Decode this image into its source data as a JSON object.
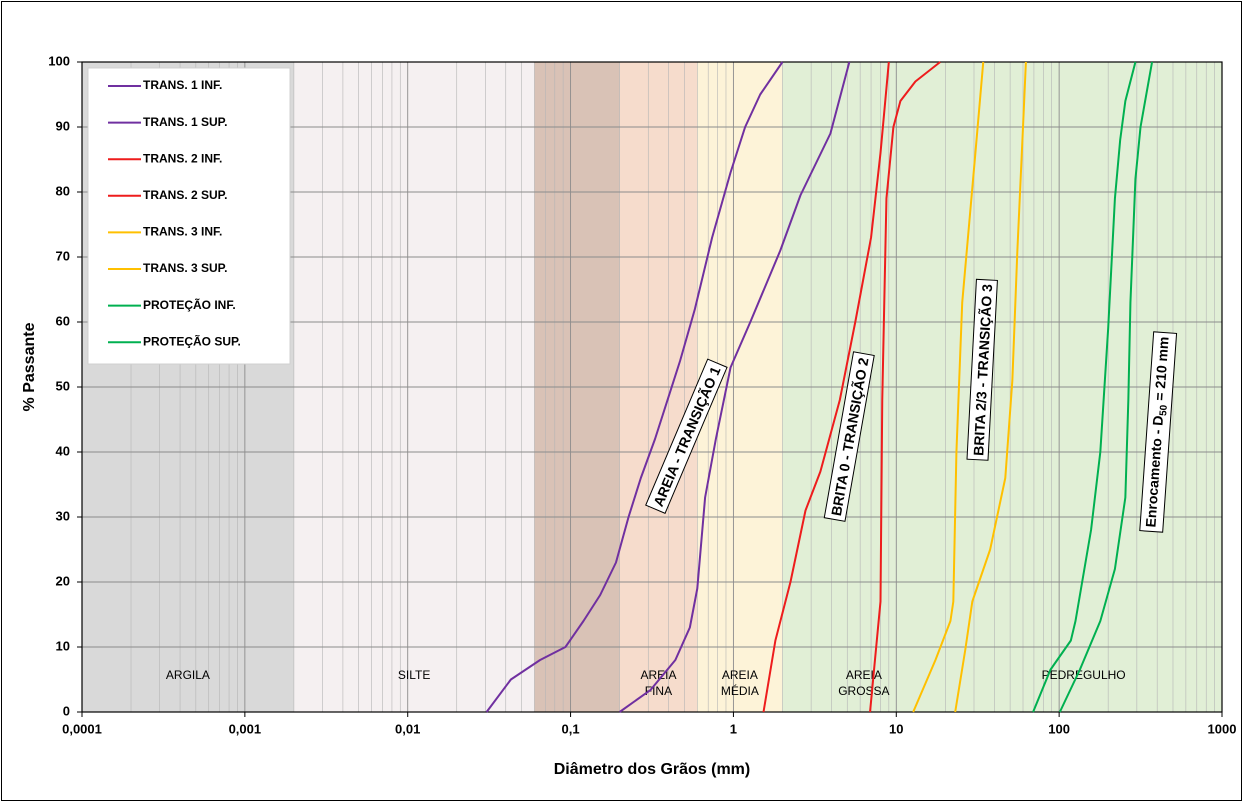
{
  "chart_data": {
    "type": "line",
    "xlabel": "Diâmetro dos Grãos (mm)",
    "ylabel": "% Passante",
    "xscale": "log",
    "xlim": [
      0.0001,
      1000
    ],
    "ylim": [
      0,
      100
    ],
    "xticks": [
      {
        "value": 0.0001,
        "label": "0,0001"
      },
      {
        "value": 0.001,
        "label": "0,001"
      },
      {
        "value": 0.01,
        "label": "0,01"
      },
      {
        "value": 0.1,
        "label": "0,1"
      },
      1,
      10,
      100,
      1000
    ],
    "yticks": [
      0,
      10,
      20,
      30,
      40,
      50,
      60,
      70,
      80,
      90,
      100
    ],
    "grid": true,
    "legend": "upper left",
    "zones": [
      {
        "from": 0.0001,
        "to": 0.002,
        "color": "#d9d9d9",
        "label": "ARGILA"
      },
      {
        "from": 0.002,
        "to": 0.06,
        "color": "#f5f0f1",
        "label": "SILTE"
      },
      {
        "from": 0.06,
        "to": 0.2,
        "color": "#d9c2b6"
      },
      {
        "from": 0.2,
        "to": 0.6,
        "color": "#f6dccc",
        "label": "AREIA FINA"
      },
      {
        "from": 0.6,
        "to": 2,
        "color": "#fdf3d8",
        "label": "AREIA MÉDIA"
      },
      {
        "from": 2,
        "to": 20,
        "color": "#e1efd6",
        "label": "AREIA GROSSA"
      },
      {
        "from": 20,
        "to": 1000,
        "color": "#e1efd6",
        "label": "PEDREGULHO"
      }
    ],
    "series": [
      {
        "name": "TRANS. 1 INF.",
        "color": "#7030a0",
        "x": [
          0.2,
          0.31,
          0.44,
          0.54,
          0.6,
          0.67,
          0.78,
          0.96,
          1.27,
          1.94,
          2.58,
          3.94,
          5.15
        ],
        "values": [
          0,
          3.4,
          8,
          13,
          19,
          33,
          42,
          53,
          60,
          71,
          79.5,
          89,
          100
        ]
      },
      {
        "name": "TRANS. 1 SUP.",
        "color": "#7030a0",
        "x": [
          0.0305,
          0.043,
          0.065,
          0.093,
          0.12,
          0.152,
          0.19,
          0.227,
          0.27,
          0.33,
          0.47,
          0.58,
          0.74,
          0.96,
          1.18,
          1.46,
          2.0
        ],
        "values": [
          0,
          5,
          8,
          10,
          14,
          18,
          23,
          30,
          36,
          42,
          54,
          62,
          73,
          83,
          90,
          95,
          100
        ]
      },
      {
        "name": "TRANS. 2 INF.",
        "color": "#ee1c1c",
        "x": [
          6.9,
          8.0,
          8.2,
          8.7,
          9.6,
          10.6,
          13.1,
          18.6
        ],
        "values": [
          0,
          17,
          48,
          79,
          90,
          94,
          97,
          100
        ]
      },
      {
        "name": "TRANS. 2 SUP.",
        "color": "#ee1c1c",
        "x": [
          1.53,
          1.81,
          2.24,
          2.77,
          3.42,
          4.5,
          5.6,
          7.0,
          8.0,
          9.0
        ],
        "values": [
          0,
          11,
          20,
          31,
          37,
          48,
          60,
          73,
          86,
          100
        ]
      },
      {
        "name": "TRANS. 3 INF.",
        "color": "#ffc000",
        "x": [
          23,
          26.5,
          29.3,
          37.7,
          46.7,
          51.6,
          55.4,
          60,
          62.5
        ],
        "values": [
          0,
          9.5,
          17,
          25,
          36,
          51,
          71,
          90,
          100
        ]
      },
      {
        "name": "TRANS. 3 SUP.",
        "color": "#ffc000",
        "x": [
          12.7,
          17.4,
          21.5,
          22.4,
          23.4,
          25.4,
          30.6,
          34.2
        ],
        "values": [
          0,
          8,
          14,
          17,
          40,
          63,
          86,
          100
        ]
      },
      {
        "name": "PROTEÇÃO INF.",
        "color": "#00b050",
        "x": [
          101,
          134,
          179,
          220,
          255,
          266,
          274,
          294,
          316,
          372
        ],
        "values": [
          0,
          6.5,
          14,
          22,
          33,
          48,
          63,
          82,
          90,
          100
        ]
      },
      {
        "name": "PROTEÇÃO SUP.",
        "color": "#00b050",
        "x": [
          69.2,
          88.4,
          118,
          126,
          157,
          179,
          200,
          220,
          237,
          255,
          294
        ],
        "values": [
          0,
          6.5,
          11,
          14,
          28,
          40,
          59,
          79,
          88,
          94,
          100
        ]
      }
    ],
    "annotations": [
      "AREIA - TRANSIÇÃO 1",
      "BRITA 0 - TRANSIÇÃO 2",
      "BRITA 2/3 - TRANSIÇÃO 3",
      [
        "Enrocamento - D",
        "50",
        " = 210 mm"
      ]
    ]
  }
}
